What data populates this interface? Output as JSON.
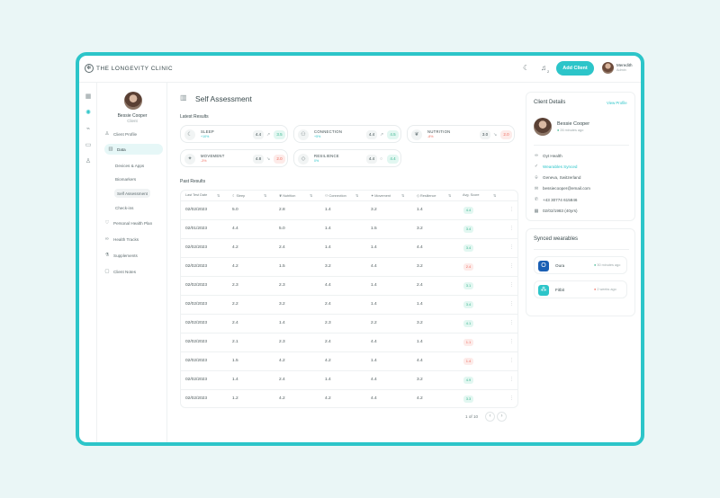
{
  "app": {
    "name": "THE LONGEVITY CLINIC",
    "add_button": "Add Client",
    "notif_count": "2"
  },
  "user": {
    "name": "Meredith",
    "role": "Admin"
  },
  "client": {
    "name": "Bessie Cooper",
    "role": "Client"
  },
  "nav": {
    "client_profile": "Client Profile",
    "data": "Data",
    "sub": [
      "Devices & Apps",
      "Biomarkers",
      "Self Assessment",
      "Check-ins"
    ],
    "personal_health_plan": "Personal Health Plan",
    "health_tracks": "Health Tracks",
    "supplements": "Supplements",
    "client_notes": "Client Notes"
  },
  "page": {
    "title": "Self Assessment",
    "latest_label": "Latest Results",
    "past_label": "Past Results"
  },
  "latest": [
    {
      "name": "SLEEP",
      "pct": "+10%",
      "trend": "up",
      "prev": "4.4",
      "arrow": "↗",
      "current": "3.5",
      "badge": "green",
      "icon": "moon-icon",
      "glyph": "☾"
    },
    {
      "name": "CONNECTION",
      "pct": "+5%",
      "trend": "up",
      "prev": "4.4",
      "arrow": "↗",
      "current": "4.5",
      "badge": "green",
      "icon": "people-icon",
      "glyph": "⚇"
    },
    {
      "name": "NUTRITION",
      "pct": "-8%",
      "trend": "down",
      "prev": "3.0",
      "arrow": "↘",
      "current": "2.0",
      "badge": "red",
      "icon": "apple-icon",
      "glyph": "❦"
    },
    {
      "name": "MOVEMENT",
      "pct": "-3%",
      "trend": "down",
      "prev": "4.8",
      "arrow": "↘",
      "current": "2.0",
      "badge": "red",
      "icon": "running-icon",
      "glyph": "✦"
    },
    {
      "name": "RESILIENCE",
      "pct": "0%",
      "trend": "flat",
      "prev": "4.4",
      "arrow": "○",
      "current": "4.4",
      "badge": "green",
      "icon": "shield-icon",
      "glyph": "◇"
    }
  ],
  "table": {
    "headers": [
      "Last Test Date",
      "Sleep",
      "Nutrition",
      "Connection",
      "Movement",
      "Resilience",
      "Avg. Score"
    ],
    "rows": [
      {
        "date": "02/02/2023",
        "sleep": "5.0",
        "nutrition": "2.8",
        "connection": "1.4",
        "movement": "3.2",
        "resilience": "1.4",
        "avg": "4.4",
        "tone": "green"
      },
      {
        "date": "02/01/2023",
        "sleep": "4.4",
        "nutrition": "5.0",
        "connection": "1.4",
        "movement": "1.5",
        "resilience": "3.2",
        "avg": "3.4",
        "tone": "green"
      },
      {
        "date": "02/02/2023",
        "sleep": "4.2",
        "nutrition": "2.4",
        "connection": "1.4",
        "movement": "1.4",
        "resilience": "4.4",
        "avg": "3.4",
        "tone": "green"
      },
      {
        "date": "02/02/2023",
        "sleep": "4.2",
        "nutrition": "1.5",
        "connection": "3.2",
        "movement": "4.4",
        "resilience": "3.2",
        "avg": "2.4",
        "tone": "red"
      },
      {
        "date": "02/02/2023",
        "sleep": "2.3",
        "nutrition": "2.3",
        "connection": "4.4",
        "movement": "1.4",
        "resilience": "2.4",
        "avg": "3.1",
        "tone": "green"
      },
      {
        "date": "02/02/2023",
        "sleep": "2.2",
        "nutrition": "3.2",
        "connection": "2.4",
        "movement": "1.4",
        "resilience": "1.4",
        "avg": "3.4",
        "tone": "green"
      },
      {
        "date": "02/02/2023",
        "sleep": "2.4",
        "nutrition": "1.4",
        "connection": "2.3",
        "movement": "2.2",
        "resilience": "3.2",
        "avg": "4.1",
        "tone": "green"
      },
      {
        "date": "02/02/2023",
        "sleep": "2.1",
        "nutrition": "2.3",
        "connection": "2.4",
        "movement": "4.4",
        "resilience": "1.4",
        "avg": "1.1",
        "tone": "red"
      },
      {
        "date": "02/02/2023",
        "sleep": "1.5",
        "nutrition": "4.2",
        "connection": "4.2",
        "movement": "1.4",
        "resilience": "4.4",
        "avg": "1.4",
        "tone": "red"
      },
      {
        "date": "02/02/2023",
        "sleep": "1.4",
        "nutrition": "2.4",
        "connection": "1.4",
        "movement": "4.4",
        "resilience": "3.2",
        "avg": "4.9",
        "tone": "green"
      },
      {
        "date": "02/02/2023",
        "sleep": "1.2",
        "nutrition": "4.2",
        "connection": "4.2",
        "movement": "4.4",
        "resilience": "4.2",
        "avg": "3.3",
        "tone": "green"
      }
    ]
  },
  "pagination": {
    "label": "1 of 10"
  },
  "details": {
    "title": "Client Details",
    "view_profile": "View Profile",
    "name": "Bessie Cooper",
    "last_seen": "26 minutes ago",
    "items": [
      {
        "icon": "link-icon",
        "glyph": "∞",
        "text": "Oyt Health",
        "accent": false
      },
      {
        "icon": "check-circle-icon",
        "glyph": "✓",
        "text": "Wearables Synced",
        "accent": true
      },
      {
        "icon": "location-icon",
        "glyph": "⌾",
        "text": "Geneva, Switzerland",
        "accent": false
      },
      {
        "icon": "mail-icon",
        "glyph": "✉",
        "text": "bessiecooper@email.com",
        "accent": false
      },
      {
        "icon": "phone-icon",
        "glyph": "✆",
        "text": "+43 30774 615846",
        "accent": false
      },
      {
        "icon": "calendar-icon",
        "glyph": "▦",
        "text": "02/02/1983 (40yrs)",
        "accent": false
      }
    ]
  },
  "wearables": {
    "title": "Synced wearables",
    "devices": [
      {
        "name": "Oura",
        "time": "30 minutes ago",
        "status": "green",
        "color": "#1a5fb4",
        "glyph": "O",
        "icon": "oura-icon"
      },
      {
        "name": "Fitbit",
        "time": "2 weeks ago",
        "status": "red",
        "color": "#2cc5c9",
        "glyph": "⁂",
        "icon": "fitbit-icon"
      }
    ]
  }
}
